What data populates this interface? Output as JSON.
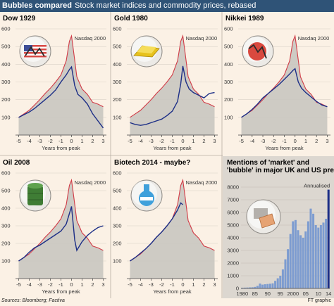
{
  "header": {
    "title": "Bubbles compared",
    "subtitle": "Stock market indices and commodity prices, rebased"
  },
  "source": "Sources: Bloomberg; Factiva",
  "credit": "FT graphic",
  "colors": {
    "header_bg": "#2f5377",
    "nasdaq": "#d13b46",
    "bubble": "#1c2e86",
    "fill": "#c9c6c0",
    "bars": "#7d9cd0",
    "bg": "#fbf1e5"
  },
  "chart_data": [
    {
      "type": "line",
      "title": "Dow 1929",
      "icon": "dow-chart-ball-icon",
      "xlabel": "Years from peak",
      "xlim": [
        -5.3,
        3.3
      ],
      "xticks": [
        "-5",
        "-4",
        "-3",
        "-2",
        "-1",
        "0",
        "1",
        "2",
        "3"
      ],
      "ylim": [
        0,
        600
      ],
      "yticks": [
        "100",
        "200",
        "300",
        "400",
        "500",
        "600"
      ],
      "nasdaq_label": "Nasdaq 2000",
      "series": [
        {
          "name": "Nasdaq 2000",
          "x": [
            -5,
            -4.5,
            -4,
            -3.5,
            -3,
            -2.5,
            -2,
            -1.5,
            -1,
            -0.5,
            -0.2,
            0,
            0.2,
            0.5,
            1,
            1.5,
            2,
            2.5,
            3
          ],
          "y": [
            100,
            120,
            140,
            170,
            200,
            235,
            265,
            300,
            340,
            420,
            530,
            560,
            470,
            330,
            260,
            230,
            185,
            175,
            160
          ]
        },
        {
          "name": "Dow 1929",
          "x": [
            -5,
            -4.5,
            -4,
            -3.5,
            -3,
            -2.5,
            -2,
            -1.5,
            -1,
            -0.5,
            -0.2,
            0,
            0.3,
            0.6,
            1,
            1.5,
            2,
            2.5,
            3
          ],
          "y": [
            100,
            115,
            130,
            150,
            175,
            200,
            225,
            255,
            300,
            340,
            370,
            385,
            280,
            230,
            210,
            175,
            120,
            80,
            40
          ]
        }
      ]
    },
    {
      "type": "line",
      "title": "Gold 1980",
      "icon": "gold-bar-ball-icon",
      "xlabel": "Years from peak",
      "xlim": [
        -5.3,
        3.3
      ],
      "xticks": [
        "-5",
        "-4",
        "-3",
        "-2",
        "-1",
        "0",
        "1",
        "2",
        "3"
      ],
      "ylim": [
        0,
        600
      ],
      "yticks": [
        "100",
        "200",
        "300",
        "400",
        "500",
        "600"
      ],
      "nasdaq_label": "Nasdaq 2000",
      "series": [
        {
          "name": "Nasdaq 2000",
          "x": [
            -5,
            -4.5,
            -4,
            -3.5,
            -3,
            -2.5,
            -2,
            -1.5,
            -1,
            -0.5,
            -0.2,
            0,
            0.2,
            0.5,
            1,
            1.5,
            2,
            2.5,
            3
          ],
          "y": [
            100,
            120,
            140,
            170,
            200,
            235,
            265,
            300,
            340,
            420,
            530,
            560,
            470,
            330,
            260,
            230,
            185,
            175,
            160
          ]
        },
        {
          "name": "Gold 1980",
          "x": [
            -5,
            -4.5,
            -4,
            -3.5,
            -3,
            -2.5,
            -2,
            -1.5,
            -1,
            -0.5,
            -0.2,
            0,
            0.3,
            0.6,
            1,
            1.5,
            2,
            2.5,
            3
          ],
          "y": [
            70,
            60,
            55,
            60,
            70,
            80,
            90,
            110,
            135,
            190,
            290,
            390,
            300,
            260,
            240,
            225,
            210,
            235,
            240
          ]
        }
      ]
    },
    {
      "type": "line",
      "title": "Nikkei 1989",
      "icon": "nikkei-chart-ball-icon",
      "xlabel": "Years from peak",
      "xlim": [
        -5.3,
        3.3
      ],
      "xticks": [
        "-5",
        "-4",
        "-3",
        "-2",
        "-1",
        "0",
        "1",
        "2",
        "3"
      ],
      "ylim": [
        0,
        600
      ],
      "yticks": [
        "100",
        "200",
        "300",
        "400",
        "500",
        "600"
      ],
      "nasdaq_label": "Nasdaq 2000",
      "series": [
        {
          "name": "Nasdaq 2000",
          "x": [
            -5,
            -4.5,
            -4,
            -3.5,
            -3,
            -2.5,
            -2,
            -1.5,
            -1,
            -0.5,
            -0.2,
            0,
            0.2,
            0.5,
            1,
            1.5,
            2,
            2.5,
            3
          ],
          "y": [
            100,
            120,
            140,
            170,
            200,
            235,
            265,
            300,
            340,
            420,
            530,
            560,
            470,
            330,
            260,
            230,
            185,
            175,
            160
          ]
        },
        {
          "name": "Nikkei 1989",
          "x": [
            -5,
            -4.5,
            -4,
            -3.5,
            -3,
            -2.5,
            -2,
            -1.5,
            -1,
            -0.5,
            -0.2,
            0,
            0.3,
            0.6,
            1,
            1.5,
            2,
            2.5,
            3
          ],
          "y": [
            100,
            120,
            145,
            175,
            210,
            235,
            260,
            285,
            315,
            345,
            365,
            375,
            300,
            265,
            240,
            215,
            190,
            170,
            160
          ]
        }
      ]
    },
    {
      "type": "line",
      "title": "Oil 2008",
      "icon": "oil-barrel-ball-icon",
      "xlabel": "Years from peak",
      "xlim": [
        -5.3,
        3.3
      ],
      "xticks": [
        "-5",
        "-4",
        "-3",
        "-2",
        "-1",
        "0",
        "1",
        "2",
        "3"
      ],
      "ylim": [
        0,
        600
      ],
      "yticks": [
        "100",
        "200",
        "300",
        "400",
        "500",
        "600"
      ],
      "nasdaq_label": "Nasdaq 2000",
      "series": [
        {
          "name": "Nasdaq 2000",
          "x": [
            -5,
            -4.5,
            -4,
            -3.5,
            -3,
            -2.5,
            -2,
            -1.5,
            -1,
            -0.5,
            -0.2,
            0,
            0.2,
            0.5,
            1,
            1.5,
            2,
            2.5,
            3
          ],
          "y": [
            100,
            120,
            140,
            170,
            200,
            235,
            265,
            300,
            340,
            420,
            530,
            560,
            470,
            330,
            260,
            230,
            185,
            175,
            160
          ]
        },
        {
          "name": "Oil 2008",
          "x": [
            -5,
            -4.5,
            -4,
            -3.5,
            -3,
            -2.5,
            -2,
            -1.5,
            -1,
            -0.5,
            -0.2,
            0,
            0.3,
            0.5,
            1,
            1.5,
            2,
            2.5,
            3
          ],
          "y": [
            100,
            120,
            150,
            175,
            190,
            210,
            230,
            250,
            270,
            310,
            370,
            410,
            220,
            160,
            210,
            245,
            270,
            290,
            300
          ]
        }
      ]
    },
    {
      "type": "line",
      "title": "Biotech 2014 - maybe?",
      "icon": "flask-ball-icon",
      "xlabel": "Years from peak",
      "xlim": [
        -5.3,
        3.3
      ],
      "xticks": [
        "-5",
        "-4",
        "-3",
        "-2",
        "-1",
        "0",
        "1",
        "2",
        "3"
      ],
      "ylim": [
        0,
        600
      ],
      "yticks": [
        "100",
        "200",
        "300",
        "400",
        "500",
        "600"
      ],
      "nasdaq_label": "Nasdaq 2000",
      "series": [
        {
          "name": "Nasdaq 2000",
          "x": [
            -5,
            -4.5,
            -4,
            -3.5,
            -3,
            -2.5,
            -2,
            -1.5,
            -1,
            -0.5,
            -0.2,
            0,
            0.2,
            0.5,
            1,
            1.5,
            2,
            2.5,
            3
          ],
          "y": [
            100,
            120,
            140,
            170,
            200,
            235,
            265,
            300,
            340,
            420,
            530,
            560,
            470,
            330,
            260,
            230,
            185,
            175,
            160
          ]
        },
        {
          "name": "Biotech 2014",
          "x": [
            -5,
            -4.5,
            -4,
            -3.5,
            -3,
            -2.5,
            -2,
            -1.5,
            -1,
            -0.5,
            -0.2,
            0
          ],
          "y": [
            100,
            120,
            145,
            170,
            200,
            235,
            265,
            300,
            340,
            390,
            430,
            420
          ]
        }
      ]
    },
    {
      "type": "bar",
      "title": "Mentions of 'market' and 'bubble' in major UK and US press",
      "icon": "newspaper-ball-icon",
      "annotation": "Annualised",
      "ylim": [
        0,
        8000
      ],
      "yticks": [
        "0",
        "1000",
        "2000",
        "3000",
        "4000",
        "5000",
        "6000",
        "7000",
        "8000"
      ],
      "xticks": [
        "1980",
        "85",
        "90",
        "95",
        "2000",
        "05",
        "10",
        "14"
      ],
      "x": [
        1980,
        1981,
        1982,
        1983,
        1984,
        1985,
        1986,
        1987,
        1988,
        1989,
        1990,
        1991,
        1992,
        1993,
        1994,
        1995,
        1996,
        1997,
        1998,
        1999,
        2000,
        2001,
        2002,
        2003,
        2004,
        2005,
        2006,
        2007,
        2008,
        2009,
        2010,
        2011,
        2012,
        2013,
        2014
      ],
      "values": [
        50,
        60,
        70,
        80,
        90,
        120,
        200,
        380,
        300,
        330,
        350,
        370,
        400,
        600,
        800,
        1000,
        1500,
        2300,
        3100,
        4300,
        5300,
        5400,
        4600,
        4200,
        4000,
        4500,
        5300,
        6300,
        5900,
        5000,
        4800,
        5000,
        5200,
        5500,
        7800
      ]
    }
  ]
}
